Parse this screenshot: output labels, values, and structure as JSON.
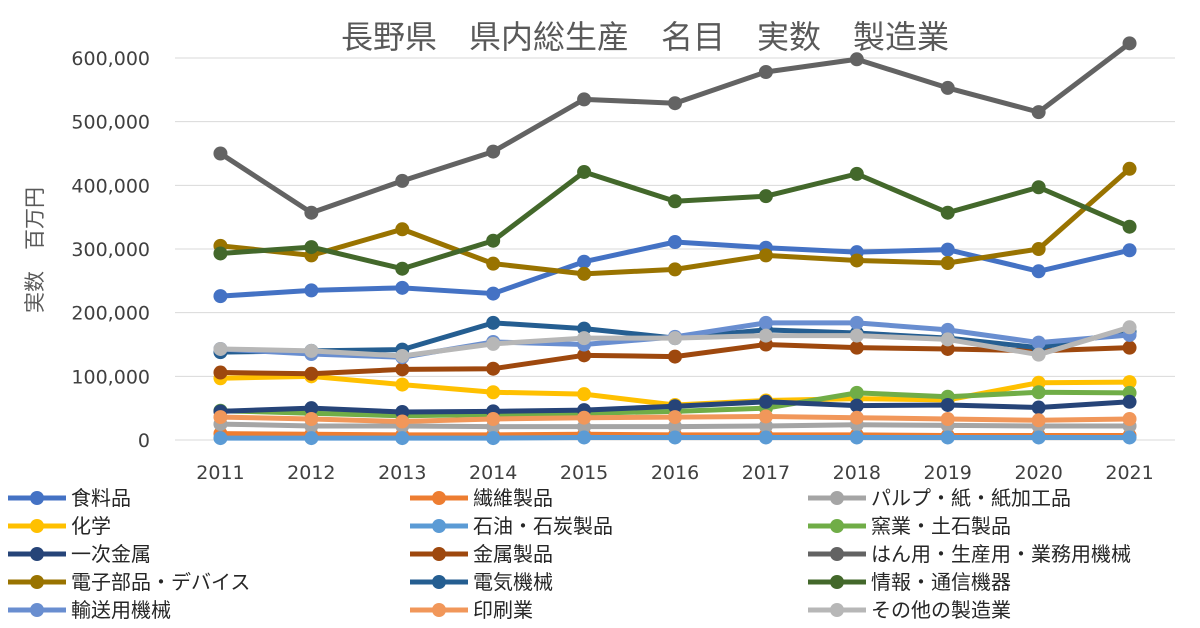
{
  "chart_data": {
    "type": "line",
    "title": "長野県　県内総生産　名目　実数　製造業",
    "ylabel": "実数　百万円",
    "xlabel": "",
    "ylim": [
      0,
      600000
    ],
    "yticks": [
      0,
      100000,
      200000,
      300000,
      400000,
      500000,
      600000
    ],
    "ytick_labels": [
      "0",
      "100,000",
      "200,000",
      "300,000",
      "400,000",
      "500,000",
      "600,000"
    ],
    "categories": [
      "2011",
      "2012",
      "2013",
      "2014",
      "2015",
      "2016",
      "2017",
      "2018",
      "2019",
      "2020",
      "2021"
    ],
    "legend_position": "bottom",
    "series": [
      {
        "name": "食料品",
        "color": "#4472c4",
        "values": [
          226000,
          235000,
          239000,
          230000,
          280000,
          311000,
          302000,
          295000,
          299000,
          265000,
          298000
        ]
      },
      {
        "name": "繊維製品",
        "color": "#ed7d31",
        "values": [
          10000,
          9000,
          8000,
          8000,
          9000,
          8000,
          8000,
          8000,
          7000,
          7000,
          7000
        ]
      },
      {
        "name": "パルプ・紙・紙加工品",
        "color": "#a5a5a5",
        "values": [
          25000,
          22000,
          22000,
          21000,
          21000,
          21000,
          22000,
          24000,
          23000,
          22000,
          22000
        ]
      },
      {
        "name": "化学",
        "color": "#ffc000",
        "values": [
          97000,
          100000,
          87000,
          75000,
          72000,
          55000,
          62000,
          65000,
          63000,
          90000,
          91000
        ]
      },
      {
        "name": "石油・石炭製品",
        "color": "#5b9bd5",
        "values": [
          3000,
          3000,
          3000,
          3000,
          4000,
          4000,
          4000,
          4000,
          4000,
          4000,
          4000
        ]
      },
      {
        "name": "窯業・土石製品",
        "color": "#70ad47",
        "values": [
          46000,
          42000,
          38000,
          40000,
          42000,
          45000,
          50000,
          74000,
          68000,
          75000,
          74000
        ]
      },
      {
        "name": "一次金属",
        "color": "#264478",
        "values": [
          45000,
          50000,
          44000,
          45000,
          47000,
          53000,
          60000,
          54000,
          55000,
          51000,
          60000
        ]
      },
      {
        "name": "金属製品",
        "color": "#9e480e",
        "values": [
          106000,
          104000,
          111000,
          112000,
          133000,
          131000,
          150000,
          145000,
          143000,
          140000,
          145000
        ]
      },
      {
        "name": "はん用・生産用・業務用機械",
        "color": "#636363",
        "values": [
          450000,
          357000,
          407000,
          453000,
          535000,
          529000,
          578000,
          598000,
          553000,
          515000,
          623000
        ]
      },
      {
        "name": "電子部品・デバイス",
        "color": "#997300",
        "values": [
          305000,
          290000,
          331000,
          277000,
          261000,
          268000,
          290000,
          282000,
          278000,
          300000,
          426000
        ]
      },
      {
        "name": "電気機械",
        "color": "#255e91",
        "values": [
          138000,
          140000,
          142000,
          184000,
          175000,
          160000,
          173000,
          168000,
          160000,
          145000,
          170000
        ]
      },
      {
        "name": "情報・通信機器",
        "color": "#43682b",
        "values": [
          293000,
          303000,
          269000,
          313000,
          421000,
          375000,
          383000,
          418000,
          357000,
          397000,
          335000
        ]
      },
      {
        "name": "輸送用機械",
        "color": "#698ed0",
        "values": [
          143000,
          135000,
          130000,
          154000,
          150000,
          162000,
          184000,
          184000,
          173000,
          153000,
          165000
        ]
      },
      {
        "name": "印刷業",
        "color": "#f1975a",
        "values": [
          36000,
          33000,
          29000,
          33000,
          35000,
          36000,
          37000,
          35000,
          33000,
          31000,
          33000
        ]
      },
      {
        "name": "その他の製造業",
        "color": "#b7b7b7",
        "values": [
          143000,
          140000,
          132000,
          151000,
          160000,
          160000,
          164000,
          164000,
          158000,
          134000,
          177000
        ]
      }
    ]
  }
}
